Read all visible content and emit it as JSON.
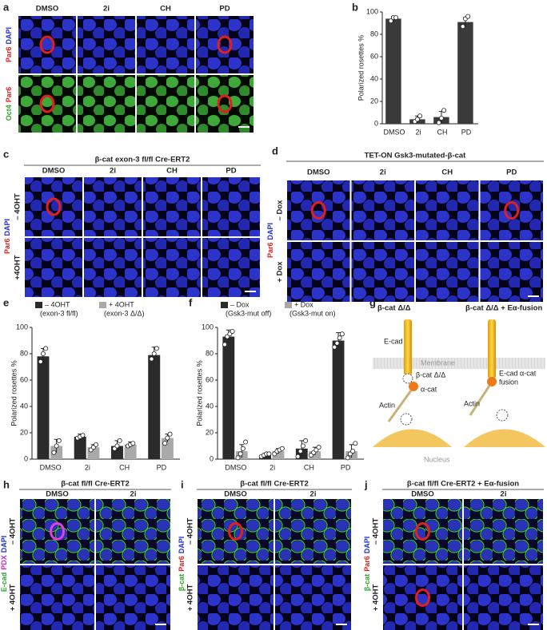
{
  "panel_labels": [
    "a",
    "b",
    "c",
    "d",
    "e",
    "f",
    "g",
    "h",
    "i",
    "j"
  ],
  "a": {
    "columns": [
      "DMSO",
      "2i",
      "CH",
      "PD"
    ],
    "rows": [
      [
        "Par6",
        "DAPI"
      ],
      [
        "Oct4",
        "Par6"
      ]
    ]
  },
  "c": {
    "title": "β-cat exon-3 fl/fl Cre-ERT2",
    "columns": [
      "DMSO",
      "2i",
      "CH",
      "PD"
    ],
    "rows": [
      "– 4OHT",
      "+4OHT"
    ],
    "stain": [
      "Par6",
      "DAPI"
    ]
  },
  "d": {
    "title": "TET-ON Gsk3-mutated-β-cat",
    "columns": [
      "DMSO",
      "2i",
      "CH",
      "PD"
    ],
    "rows": [
      "– Dox",
      "+ Dox"
    ],
    "stain": [
      "Par6",
      "DAPI"
    ]
  },
  "g": {
    "left_title": "β-cat Δ/Δ",
    "right_title": "β-cat Δ/Δ + Eα-fusion",
    "ecad": "E-cad",
    "membrane": "Membrane",
    "bcat": "β-cat Δ/Δ",
    "acat": "α-cat",
    "actin": "Actin",
    "nucleus": "Nucleus",
    "fusion": [
      "E-cad α-cat",
      "fusion"
    ]
  },
  "h": {
    "title": "β-cat fl/fl Cre-ERT2",
    "columns": [
      "DMSO",
      "2i"
    ],
    "rows": [
      "– 4OHT",
      "+ 4OHT"
    ],
    "stain": [
      "E-cad",
      "PDX",
      "DAPI"
    ]
  },
  "i": {
    "title": "β-cat fl/fl Cre-ERT2",
    "columns": [
      "DMSO",
      "2i"
    ],
    "rows": [
      "– 4OHT",
      "+ 4OHT"
    ],
    "stain": [
      "β-cat",
      "Par6",
      "DAPI"
    ]
  },
  "j": {
    "title": "β-cat fl/fl Cre-ERT2 + Eα-fusion",
    "columns": [
      "DMSO",
      "2i"
    ],
    "rows": [
      "– 4OHT",
      "+ 4OHT"
    ],
    "stain": [
      "β-cat",
      "Par6",
      "DAPI"
    ]
  },
  "chart_data": [
    {
      "type": "bar",
      "ylabel": "Polarized rosettes %",
      "categories": [
        "DMSO",
        "2i",
        "CH",
        "PD"
      ],
      "color": "#3a3a3a",
      "values": [
        94,
        4,
        6,
        91
      ],
      "errors": [
        2,
        3,
        5,
        4
      ],
      "points": [
        [
          92,
          95,
          95
        ],
        [
          2,
          4,
          7
        ],
        [
          1,
          5,
          12
        ],
        [
          87,
          94,
          96
        ]
      ],
      "ylim": [
        0,
        100
      ],
      "yticks": [
        0,
        20,
        40,
        60,
        80,
        100
      ]
    },
    {
      "type": "bar",
      "ylabel": "Polarized rosettes %",
      "categories": [
        "DMSO",
        "2i",
        "CH",
        "PD"
      ],
      "series": [
        {
          "name": "– 4OHT",
          "detail": "(exon-3 fl/fl)",
          "color": "#2b2b2b",
          "values": [
            78,
            17,
            10,
            79
          ],
          "errors": [
            6,
            2,
            4,
            6
          ],
          "points": [
            [
              74,
              80,
              84
            ],
            [
              16,
              17,
              18
            ],
            [
              8,
              10,
              14
            ],
            [
              76,
              80,
              84
            ]
          ]
        },
        {
          "name": "+ 4OHT",
          "detail": "(exon-3 Δ/Δ)",
          "color": "#a9a9a9",
          "values": [
            10,
            9,
            11,
            16
          ],
          "errors": [
            5,
            2,
            2,
            3
          ],
          "points": [
            [
              5,
              10,
              14
            ],
            [
              7,
              9,
              11
            ],
            [
              10,
              11,
              12
            ],
            [
              12,
              16,
              19
            ]
          ]
        }
      ],
      "ylim": [
        0,
        100
      ],
      "yticks": [
        0,
        20,
        40,
        60,
        80,
        100
      ]
    },
    {
      "type": "bar",
      "ylabel": "Polarized rosettes %",
      "categories": [
        "DMSO",
        "2i",
        "CH",
        "PD"
      ],
      "series": [
        {
          "name": "– Dox",
          "detail": "(Gsk3-mut off)",
          "color": "#2b2b2b",
          "values": [
            93,
            3,
            8,
            90
          ],
          "errors": [
            5,
            1,
            6,
            6
          ],
          "points": [
            [
              87,
              93,
              95,
              97
            ],
            [
              2,
              3,
              4,
              4
            ],
            [
              2,
              6,
              10,
              14
            ],
            [
              85,
              88,
              92,
              95
            ]
          ]
        },
        {
          "name": "+ Dox",
          "detail": "(Gsk3-mut on)",
          "color": "#a9a9a9",
          "values": [
            6,
            6,
            6,
            6
          ],
          "errors": [
            5,
            2,
            3,
            5
          ],
          "points": [
            [
              1,
              4,
              8,
              13
            ],
            [
              4,
              6,
              7,
              8
            ],
            [
              3,
              5,
              7,
              9
            ],
            [
              1,
              4,
              6,
              12
            ]
          ]
        }
      ],
      "ylim": [
        0,
        100
      ],
      "yticks": [
        0,
        20,
        40,
        60,
        80,
        100
      ]
    }
  ]
}
